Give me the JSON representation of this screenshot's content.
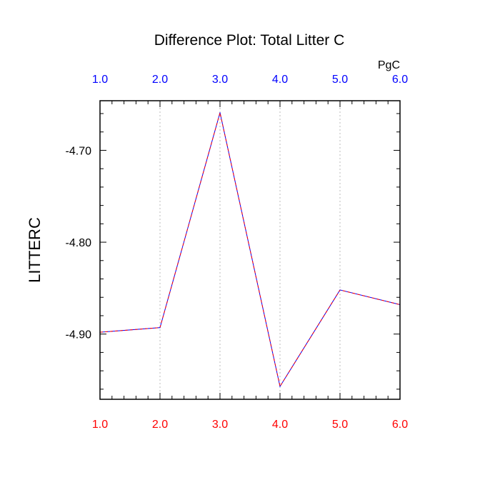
{
  "chart_data": {
    "type": "line",
    "title": "Difference Plot: Total Litter C",
    "units_label": "PgC",
    "xlabel": "",
    "ylabel": "LITTERC",
    "x": [
      1.0,
      2.0,
      3.0,
      4.0,
      5.0,
      6.0
    ],
    "series": [
      {
        "values": [
          -4.898,
          -4.893,
          -4.659,
          -4.957,
          -4.852,
          -4.868
        ]
      }
    ],
    "xlim": [
      1.0,
      6.0
    ],
    "ylim": [
      -4.971,
      -4.646
    ],
    "x_ticks": [
      1.0,
      2.0,
      3.0,
      4.0,
      5.0,
      6.0
    ],
    "x_tick_labels_bottom": [
      "1.0",
      "2.0",
      "3.0",
      "4.0",
      "5.0",
      "6.0"
    ],
    "x_tick_labels_top": [
      "1.0",
      "2.0",
      "3.0",
      "4.0",
      "5.0",
      "6.0"
    ],
    "y_ticks": [
      -4.7,
      -4.8,
      -4.9
    ],
    "y_tick_labels": [
      "-4.70",
      "-4.80",
      "-4.90"
    ],
    "grid": "vertical dotted",
    "colors": {
      "line_primary": "#0000ff",
      "line_overlay": "#ff0000",
      "bottom_tick_labels": "#ff0000",
      "top_tick_labels": "#0000ff",
      "grid": "#bbbbbb",
      "frame": "#000000"
    }
  }
}
